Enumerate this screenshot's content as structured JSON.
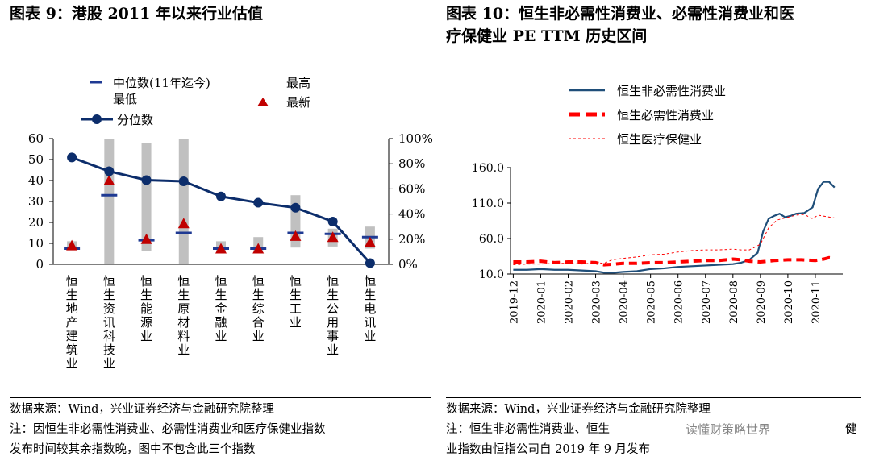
{
  "left_panel": {
    "title": "图表 9：港股 2011 年以来行业估值",
    "source": "数据来源：Wind，兴业证券经济与金融研究院整理",
    "note_line1": "注：因恒生非必需性消费业、必需性消费业和医疗保健业指数",
    "note_line2": "发布时间较其余指数晚，图中不包含此三个指数"
  },
  "right_panel": {
    "title_line1": "图表 10：恒生非必需性消费业、必需性消费业和医",
    "title_line2": "疗保健业 PE TTM 历史区间",
    "source": "数据来源：Wind，兴业证券经济与金融研究院整理",
    "note_line1": "注：恒生非必需性消费业、恒生",
    "note_line1_tail": "健",
    "note_line2": "业指数由恒指公司自 2019 年 9 月发布"
  },
  "watermark": "读懂财策略世界",
  "chart_data": [
    {
      "type": "bar",
      "legend": [
        "中位数(11年迄今)",
        "最高",
        "最低",
        "最新",
        "分位数"
      ],
      "categories": [
        "恒生地产建筑业",
        "恒生资讯科技业",
        "恒生能源业",
        "恒生原材料业",
        "恒生金融业",
        "恒生综合业",
        "恒生工业",
        "恒生公用事业",
        "恒生电讯业"
      ],
      "range_low": [
        7,
        0,
        6.5,
        0,
        6.5,
        6.5,
        8,
        8.5,
        7.5
      ],
      "range_high": [
        11,
        60,
        58,
        60,
        11,
        13,
        33,
        17,
        18
      ],
      "median": [
        7.5,
        33,
        11.5,
        15,
        7.5,
        7.5,
        15,
        14.5,
        13
      ],
      "latest": [
        9,
        40,
        12,
        19.5,
        7.5,
        7.5,
        13.5,
        13,
        10.5
      ],
      "percentile": [
        85,
        74,
        67,
        66,
        54,
        49,
        45,
        34,
        1
      ],
      "y_left": {
        "ticks": [
          "0",
          "10",
          "20",
          "30",
          "40",
          "50",
          "60"
        ],
        "range": [
          0,
          60
        ]
      },
      "y_right": {
        "ticks": [
          "0%",
          "20%",
          "40%",
          "60%",
          "80%",
          "100%"
        ],
        "range": [
          0,
          100
        ]
      }
    },
    {
      "type": "line",
      "x_ticks": [
        "2019-12",
        "2020-01",
        "2020-02",
        "2020-03",
        "2020-04",
        "2020-05",
        "2020-06",
        "2020-07",
        "2020-08",
        "2020-09",
        "2020-10",
        "2020-11"
      ],
      "y_ticks": [
        "10.0",
        "60.0",
        "110.0",
        "160.0"
      ],
      "ylim": [
        10,
        160
      ],
      "series": [
        {
          "name": "恒生非必需性消费业",
          "color": "#1f4e79",
          "style": "solid",
          "points": [
            [
              0,
              16
            ],
            [
              0.5,
              16
            ],
            [
              1,
              17
            ],
            [
              1.5,
              16
            ],
            [
              2,
              16
            ],
            [
              2.5,
              15
            ],
            [
              3,
              14
            ],
            [
              3.3,
              12
            ],
            [
              3.7,
              12
            ],
            [
              4,
              13
            ],
            [
              4.5,
              14
            ],
            [
              5,
              17
            ],
            [
              5.5,
              18
            ],
            [
              6,
              20
            ],
            [
              6.5,
              21
            ],
            [
              7,
              22
            ],
            [
              7.5,
              23
            ],
            [
              8,
              24
            ],
            [
              8.3,
              26
            ],
            [
              8.6,
              30
            ],
            [
              8.9,
              40
            ],
            [
              9.1,
              70
            ],
            [
              9.3,
              88
            ],
            [
              9.5,
              92
            ],
            [
              9.7,
              95
            ],
            [
              9.9,
              90
            ],
            [
              10.1,
              92
            ],
            [
              10.3,
              95
            ],
            [
              10.6,
              96
            ],
            [
              10.9,
              104
            ],
            [
              11.1,
              130
            ],
            [
              11.3,
              140
            ],
            [
              11.5,
              140
            ],
            [
              11.7,
              132
            ]
          ]
        },
        {
          "name": "恒生必需性消费业",
          "color": "#ff0000",
          "style": "dashed",
          "points": [
            [
              0,
              27
            ],
            [
              0.5,
              27
            ],
            [
              1,
              28
            ],
            [
              1.5,
              26
            ],
            [
              2,
              27
            ],
            [
              2.5,
              27
            ],
            [
              3,
              26
            ],
            [
              3.3,
              23
            ],
            [
              3.7,
              24
            ],
            [
              4,
              25
            ],
            [
              4.5,
              25
            ],
            [
              5,
              26
            ],
            [
              5.5,
              26
            ],
            [
              6,
              27
            ],
            [
              6.5,
              28
            ],
            [
              7,
              29
            ],
            [
              7.5,
              29
            ],
            [
              8,
              31
            ],
            [
              8.3,
              30
            ],
            [
              8.6,
              28
            ],
            [
              9,
              27
            ],
            [
              9.5,
              29
            ],
            [
              10,
              30
            ],
            [
              10.5,
              30
            ],
            [
              11,
              29
            ],
            [
              11.3,
              31
            ],
            [
              11.5,
              33
            ],
            [
              11.7,
              32
            ]
          ]
        },
        {
          "name": "恒生医疗保健业",
          "color": "#ff0000",
          "style": "dotted",
          "points": [
            [
              0,
              23
            ],
            [
              0.5,
              24
            ],
            [
              1,
              24
            ],
            [
              1.5,
              25
            ],
            [
              2,
              25
            ],
            [
              2.5,
              24
            ],
            [
              3,
              26
            ],
            [
              3.3,
              25
            ],
            [
              3.6,
              30
            ],
            [
              4,
              32
            ],
            [
              4.5,
              34
            ],
            [
              5,
              37
            ],
            [
              5.5,
              38
            ],
            [
              6,
              41
            ],
            [
              6.5,
              43
            ],
            [
              7,
              44
            ],
            [
              7.5,
              44
            ],
            [
              8,
              45
            ],
            [
              8.3,
              44
            ],
            [
              8.6,
              44
            ],
            [
              9,
              52
            ],
            [
              9.3,
              75
            ],
            [
              9.6,
              86
            ],
            [
              10,
              90
            ],
            [
              10.3,
              93
            ],
            [
              10.6,
              94
            ],
            [
              10.9,
              88
            ],
            [
              11.1,
              93
            ],
            [
              11.4,
              91
            ],
            [
              11.7,
              89
            ]
          ]
        }
      ]
    }
  ]
}
